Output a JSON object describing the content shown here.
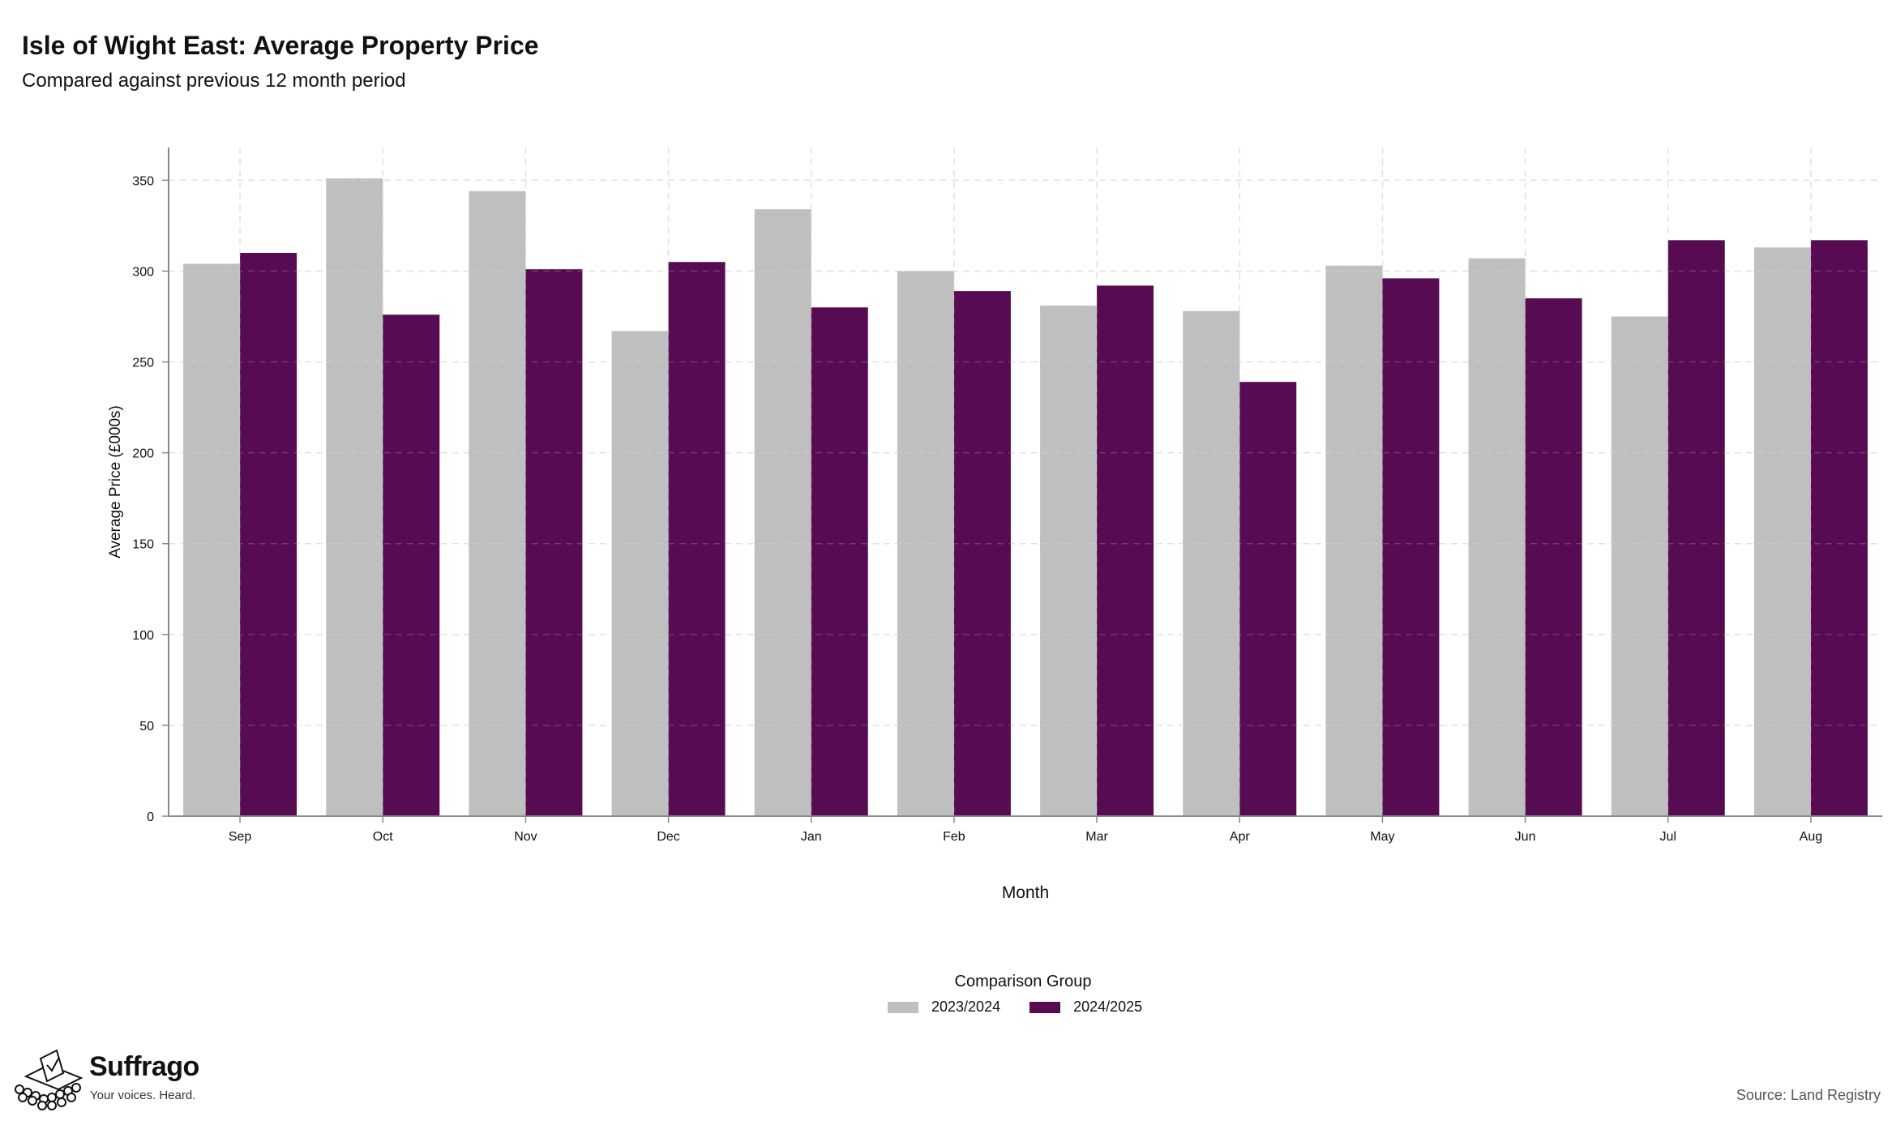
{
  "chart_data": {
    "type": "bar",
    "title": "Isle of Wight East: Average Property Price",
    "subtitle": "Compared against previous 12 month period",
    "xlabel": "Month",
    "ylabel": "Average Price (£000s)",
    "ylim": [
      0,
      368
    ],
    "yticks": [
      0,
      50,
      100,
      150,
      200,
      250,
      300,
      350
    ],
    "grid": true,
    "categories": [
      "Sep",
      "Oct",
      "Nov",
      "Dec",
      "Jan",
      "Feb",
      "Mar",
      "Apr",
      "May",
      "Jun",
      "Jul",
      "Aug"
    ],
    "series": [
      {
        "name": "2023/2024",
        "color": "#bfbfbf",
        "values": [
          304,
          351,
          344,
          267,
          334,
          300,
          281,
          278,
          303,
          307,
          275,
          313
        ]
      },
      {
        "name": "2024/2025",
        "color": "#560b53",
        "values": [
          310,
          276,
          301,
          305,
          280,
          289,
          292,
          239,
          296,
          285,
          317,
          317
        ]
      }
    ],
    "legend": {
      "title": "Comparison Group",
      "position": "bottom"
    }
  },
  "footer": {
    "brand_name": "Suffrago",
    "brand_tagline": "Your voices. Heard.",
    "source": "Source: Land Registry"
  }
}
